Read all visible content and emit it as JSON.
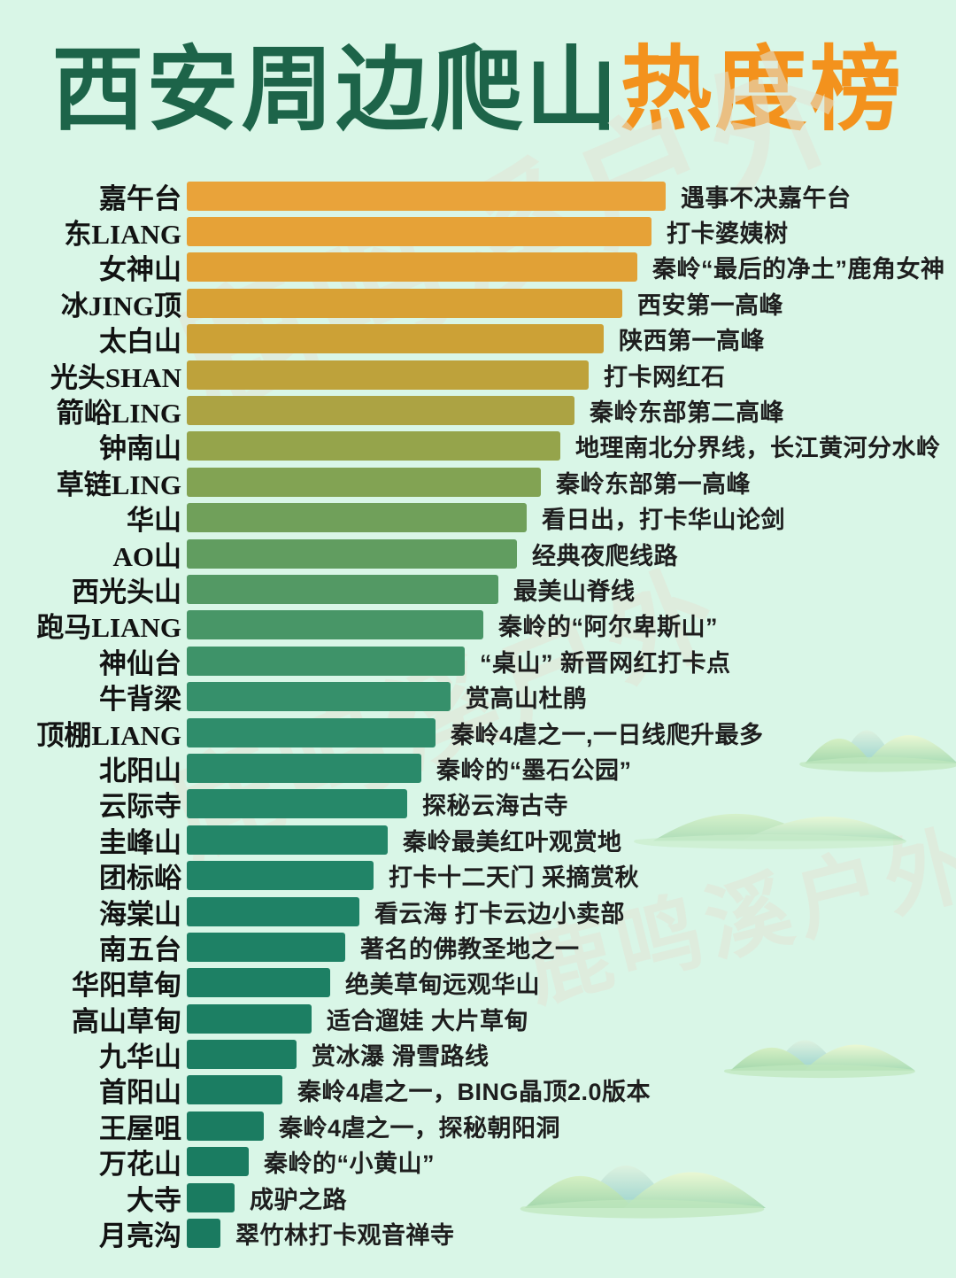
{
  "title": {
    "main": "西安周边爬山",
    "accent": "热度榜"
  },
  "watermark": {
    "text": "鹿鸣溪户外"
  },
  "colors": {
    "background": "#d9f6e7",
    "title_main": "#1d6449",
    "title_accent": "#f3921d",
    "label_text": "#121212",
    "description_text": "#1e1e1e",
    "watermark": "rgba(226,228,213,0.55)"
  },
  "chart_data": {
    "type": "bar",
    "orientation": "horizontal",
    "title": "西安周边爬山热度榜",
    "legend": false,
    "grid": false,
    "axis_shown": false,
    "value_unit": "relative popularity index (0-100, inferred from bar length)",
    "value_range": [
      0,
      100
    ],
    "categories": [
      "嘉午台",
      "东LIANG",
      "女神山",
      "冰JING顶",
      "太白山",
      "光头SHAN",
      "箭峪LING",
      "钟南山",
      "草链LING",
      "华山",
      "AO山",
      "西光头山",
      "跑马LIANG",
      "神仙台",
      "牛背梁",
      "顶棚LIANG",
      "北阳山",
      "云际寺",
      "圭峰山",
      "团标峪",
      "海棠山",
      "南五台",
      "华阳草甸",
      "高山草甸",
      "九华山",
      "首阳山",
      "王屋咀",
      "万花山",
      "大寺",
      "月亮沟"
    ],
    "values": [
      100,
      97,
      94,
      91,
      87,
      84,
      81,
      78,
      74,
      71,
      69,
      65,
      62,
      58,
      55,
      52,
      49,
      46,
      42,
      39,
      36,
      33,
      30,
      26,
      23,
      20,
      16,
      13,
      10,
      7
    ],
    "descriptions": [
      "遇事不决嘉午台",
      "打卡婆姨树",
      "秦岭“最后的净土”鹿角女神",
      "西安第一高峰",
      "陕西第一高峰",
      "打卡网红石",
      "秦岭东部第二高峰",
      "地理南北分界线，长江黄河分水岭",
      "秦岭东部第一高峰",
      "看日出，打卡华山论剑",
      "经典夜爬线路",
      "最美山脊线",
      "秦岭的“阿尔卑斯山”",
      "“桌山” 新晋网红打卡点",
      "赏高山杜鹃",
      "秦岭4虐之一,一日线爬升最多",
      "秦岭的“墨石公园”",
      "探秘云海古寺",
      "秦岭最美红叶观赏地",
      "打卡十二天门 采摘赏秋",
      "看云海 打卡云边小卖部",
      "著名的佛教圣地之一",
      "绝美草甸远观华山",
      "适合遛娃 大片草甸",
      "赏冰瀑 滑雪路线",
      "秦岭4虐之一，BING晶顶2.0版本",
      "秦岭4虐之一，探秘朝阳洞",
      "秦岭的“小黄山”",
      "成驴之路",
      "翠竹林打卡观音禅寺"
    ],
    "bar_colors": [
      "#E9A33A",
      "#E6A237",
      "#E1A136",
      "#D8A135",
      "#CCA136",
      "#BEA23B",
      "#ACA343",
      "#95A44B",
      "#82A353",
      "#70A05A",
      "#619D60",
      "#539964",
      "#489667",
      "#3E9369",
      "#36906B",
      "#2F8D6B",
      "#2A8A6A",
      "#268869",
      "#238668",
      "#218467",
      "#1F8266",
      "#1E8165",
      "#1D8064",
      "#1C7F63",
      "#1C7E62",
      "#1B7D62",
      "#1B7C61",
      "#1A7C61",
      "#1A7B60",
      "#1A7A60"
    ]
  }
}
